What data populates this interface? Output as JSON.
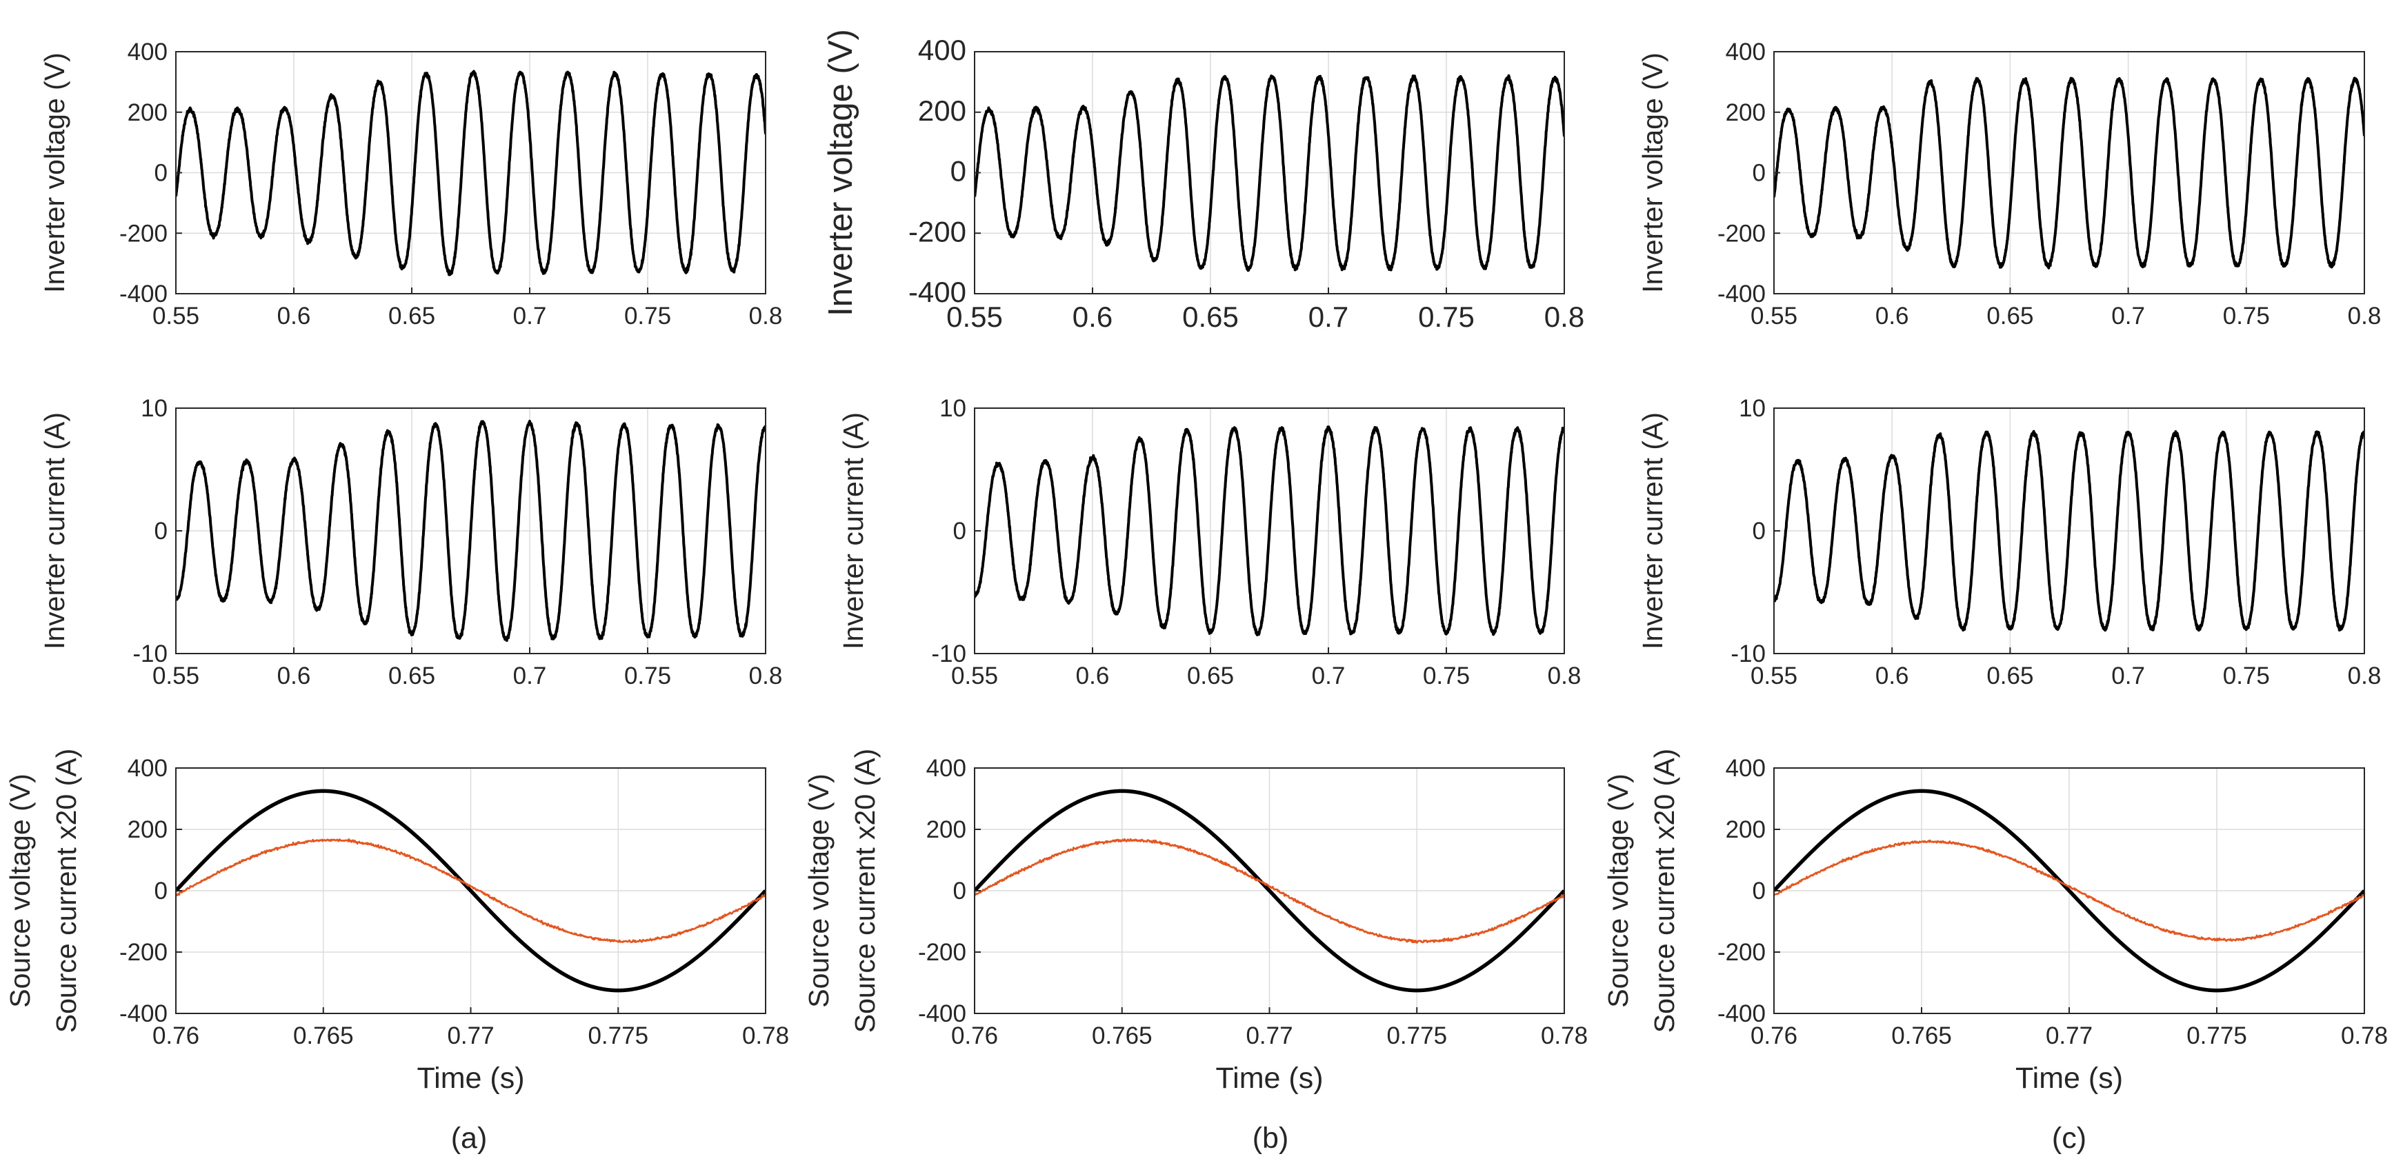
{
  "figure": {
    "captions": [
      "(a)",
      "(b)",
      "(c)"
    ]
  },
  "chart_data": [
    {
      "id": "a-voltage",
      "type": "line",
      "column": "a",
      "row": 0,
      "ylabel": "Inverter voltage (V)",
      "xlabel": "",
      "xlim": [
        0.55,
        0.8
      ],
      "ylim": [
        -400,
        400
      ],
      "xticks": [
        "0.55",
        "0.6",
        "0.65",
        "0.7",
        "0.75",
        "0.8"
      ],
      "yticks": [
        "-400",
        "-200",
        "0",
        "200",
        "400"
      ],
      "grid": true,
      "frequency_hz": 50,
      "phase_deg": -20,
      "color": "#000000",
      "amplitude_envelope": {
        "t": [
          0.55,
          0.6,
          0.62,
          0.64,
          0.66,
          0.68,
          0.8
        ],
        "amp": [
          215,
          220,
          275,
          320,
          345,
          345,
          335
        ]
      }
    },
    {
      "id": "a-current",
      "type": "line",
      "column": "a",
      "row": 1,
      "ylabel": "Inverter current (A)",
      "xlabel": "",
      "xlim": [
        0.55,
        0.8
      ],
      "ylim": [
        -10,
        10
      ],
      "xticks": [
        "0.55",
        "0.6",
        "0.65",
        "0.7",
        "0.75",
        "0.8"
      ],
      "yticks": [
        "-10",
        "0",
        "10"
      ],
      "grid": true,
      "frequency_hz": 50,
      "phase_deg": -90,
      "color": "#000000",
      "amplitude_envelope": {
        "t": [
          0.55,
          0.6,
          0.62,
          0.64,
          0.66,
          0.68,
          0.8
        ],
        "amp": [
          5.8,
          6.0,
          7.3,
          8.4,
          9.0,
          9.2,
          8.8
        ]
      }
    },
    {
      "id": "a-source",
      "type": "line",
      "column": "a",
      "row": 2,
      "ylabel": "Source voltage (V)",
      "ylabel2": "Source current x20 (A)",
      "xlabel": "Time (s)",
      "xlim": [
        0.76,
        0.78
      ],
      "ylim": [
        -400,
        400
      ],
      "xticks": [
        "0.76",
        "0.765",
        "0.77",
        "0.775",
        "0.78"
      ],
      "yticks": [
        "-400",
        "-200",
        "0",
        "200",
        "400"
      ],
      "grid": true,
      "series": [
        {
          "name": "Source voltage",
          "frequency_hz": 50,
          "amplitude": 325,
          "phase_deg": 0,
          "color": "#000000"
        },
        {
          "name": "Source current x20",
          "frequency_hz": 50,
          "amplitude": 165,
          "phase_deg": -5,
          "color": "#e8541c"
        }
      ]
    },
    {
      "id": "b-voltage",
      "type": "line",
      "column": "b",
      "row": 0,
      "ylabel": "Inverter voltage (V)",
      "xlabel": "",
      "xlim": [
        0.55,
        0.8
      ],
      "ylim": [
        -400,
        400
      ],
      "xticks": [
        "0.55",
        "0.6",
        "0.65",
        "0.7",
        "0.75",
        "0.8"
      ],
      "yticks": [
        "-400",
        "-200",
        "0",
        "200",
        "400"
      ],
      "grid": true,
      "frequency_hz": 50,
      "phase_deg": -20,
      "color": "#000000",
      "amplitude_envelope": {
        "t": [
          0.55,
          0.6,
          0.62,
          0.64,
          0.66,
          0.8
        ],
        "amp": [
          215,
          225,
          290,
          325,
          330,
          325
        ]
      }
    },
    {
      "id": "b-current",
      "type": "line",
      "column": "b",
      "row": 1,
      "ylabel": "Inverter current (A)",
      "xlabel": "",
      "xlim": [
        0.55,
        0.8
      ],
      "ylim": [
        -10,
        10
      ],
      "xticks": [
        "0.55",
        "0.6",
        "0.65",
        "0.7",
        "0.75",
        "0.8"
      ],
      "yticks": [
        "-10",
        "0",
        "10"
      ],
      "grid": true,
      "frequency_hz": 50,
      "phase_deg": -90,
      "color": "#000000",
      "amplitude_envelope": {
        "t": [
          0.55,
          0.6,
          0.62,
          0.64,
          0.66,
          0.8
        ],
        "amp": [
          5.5,
          6.2,
          7.8,
          8.5,
          8.7,
          8.6
        ]
      }
    },
    {
      "id": "b-source",
      "type": "line",
      "column": "b",
      "row": 2,
      "ylabel": "Source voltage (V)",
      "ylabel2": "Source current x20 (A)",
      "xlabel": "Time (s)",
      "xlim": [
        0.76,
        0.78
      ],
      "ylim": [
        -400,
        400
      ],
      "xticks": [
        "0.76",
        "0.765",
        "0.77",
        "0.775",
        "0.78"
      ],
      "yticks": [
        "-400",
        "-200",
        "0",
        "200",
        "400"
      ],
      "grid": true,
      "series": [
        {
          "name": "Source voltage",
          "frequency_hz": 50,
          "amplitude": 325,
          "phase_deg": 0,
          "color": "#000000"
        },
        {
          "name": "Source current x20",
          "frequency_hz": 50,
          "amplitude": 165,
          "phase_deg": -5,
          "color": "#e8541c"
        }
      ]
    },
    {
      "id": "c-voltage",
      "type": "line",
      "column": "c",
      "row": 0,
      "ylabel": "Inverter voltage (V)",
      "xlabel": "",
      "xlim": [
        0.55,
        0.8
      ],
      "ylim": [
        -400,
        400
      ],
      "xticks": [
        "0.55",
        "0.6",
        "0.65",
        "0.7",
        "0.75",
        "0.8"
      ],
      "yticks": [
        "-400",
        "-200",
        "0",
        "200",
        "400"
      ],
      "grid": true,
      "frequency_hz": 50,
      "phase_deg": -20,
      "color": "#000000",
      "amplitude_envelope": {
        "t": [
          0.55,
          0.6,
          0.615,
          0.625,
          0.8
        ],
        "amp": [
          215,
          225,
          310,
          320,
          320
        ]
      }
    },
    {
      "id": "c-current",
      "type": "line",
      "column": "c",
      "row": 1,
      "ylabel": "Inverter current (A)",
      "xlabel": "",
      "xlim": [
        0.55,
        0.8
      ],
      "ylim": [
        -10,
        10
      ],
      "xticks": [
        "0.55",
        "0.6",
        "0.65",
        "0.7",
        "0.75",
        "0.8"
      ],
      "yticks": [
        "-10",
        "0",
        "10"
      ],
      "grid": true,
      "frequency_hz": 50,
      "phase_deg": -90,
      "color": "#000000",
      "amplitude_envelope": {
        "t": [
          0.55,
          0.6,
          0.615,
          0.625,
          0.8
        ],
        "amp": [
          5.8,
          6.3,
          7.9,
          8.3,
          8.3
        ]
      }
    },
    {
      "id": "c-source",
      "type": "line",
      "column": "c",
      "row": 2,
      "ylabel": "Source voltage (V)",
      "ylabel2": "Source current x20 (A)",
      "xlabel": "Time (s)",
      "xlim": [
        0.76,
        0.78
      ],
      "ylim": [
        -400,
        400
      ],
      "xticks": [
        "0.76",
        "0.765",
        "0.77",
        "0.775",
        "0.78"
      ],
      "yticks": [
        "-400",
        "-200",
        "0",
        "200",
        "400"
      ],
      "grid": true,
      "series": [
        {
          "name": "Source voltage",
          "frequency_hz": 50,
          "amplitude": 325,
          "phase_deg": 0,
          "color": "#000000"
        },
        {
          "name": "Source current x20",
          "frequency_hz": 50,
          "amplitude": 160,
          "phase_deg": -5,
          "color": "#e8541c"
        }
      ]
    }
  ]
}
